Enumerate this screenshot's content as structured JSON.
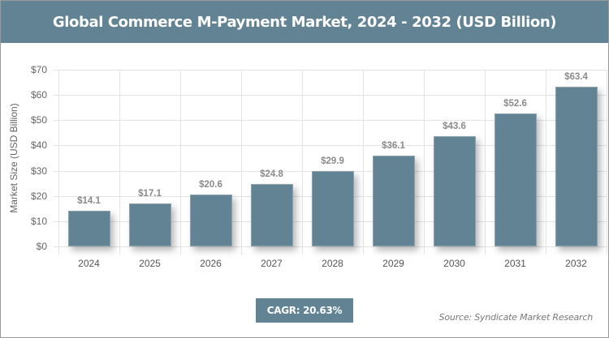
{
  "title": "Global Commerce M-Payment Market, 2024 - 2032 (USD Billion)",
  "cagr_label": "CAGR: 20.63%",
  "source": "Source: Syndicate Market Research",
  "colors": {
    "header": "#618393",
    "bar": "#628393",
    "label": "#8a8a8a"
  },
  "chart_data": {
    "type": "bar",
    "title": "Global Commerce M-Payment Market, 2024 - 2032 (USD Billion)",
    "xlabel": "",
    "ylabel": "Market Size (USD Billion)",
    "categories": [
      "2024",
      "2025",
      "2026",
      "2027",
      "2028",
      "2029",
      "2030",
      "2031",
      "2032"
    ],
    "values": [
      14.1,
      17.1,
      20.6,
      24.8,
      29.9,
      36.1,
      43.6,
      52.6,
      63.4
    ],
    "value_labels": [
      "$14.1",
      "$17.1",
      "$20.6",
      "$24.8",
      "$29.9",
      "$36.1",
      "$43.6",
      "$52.6",
      "$63.4"
    ],
    "ylim": [
      0,
      70
    ],
    "yticks": [
      "$0",
      "$10",
      "$20",
      "$30",
      "$40",
      "$50",
      "$60",
      "$70"
    ],
    "grid": true,
    "legend": null,
    "annotations": [
      "CAGR: 20.63%",
      "Source: Syndicate Market Research"
    ]
  }
}
